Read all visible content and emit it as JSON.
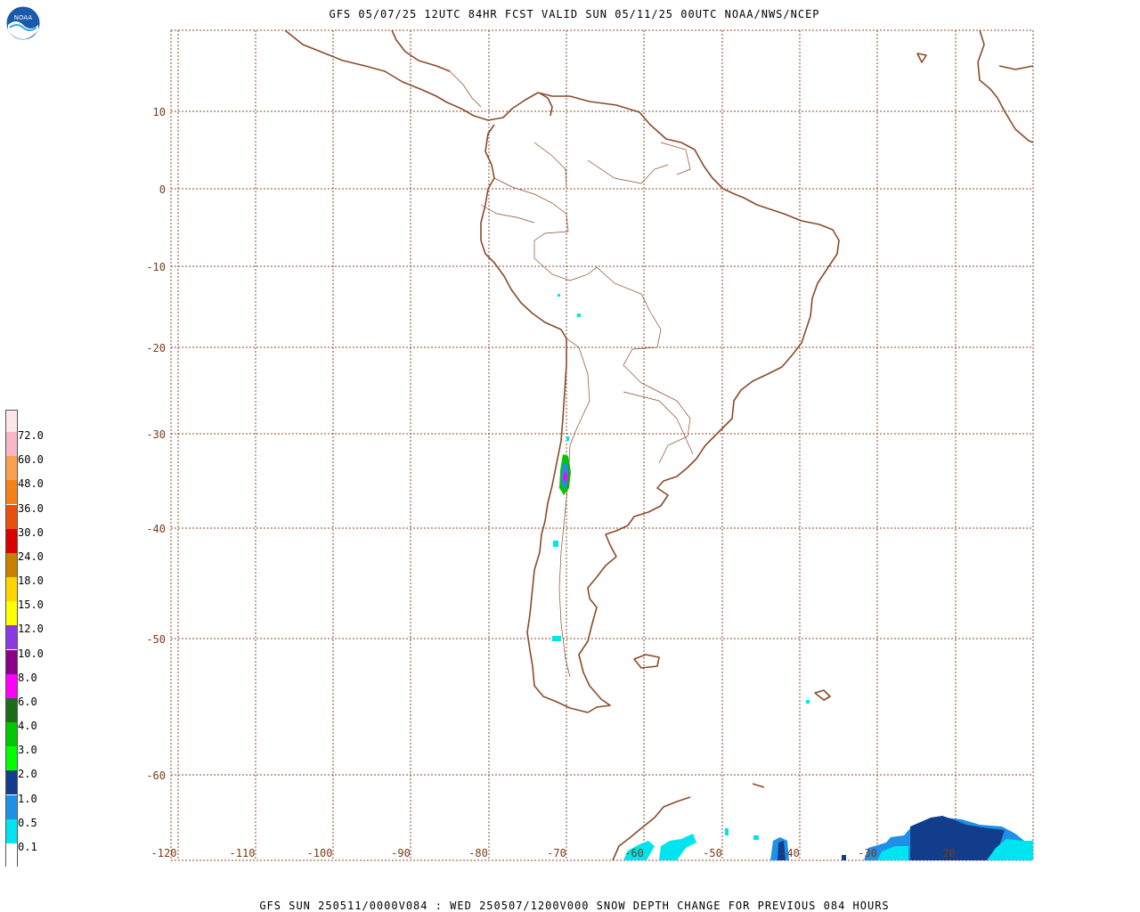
{
  "header": {
    "title": "GFS 05/07/25 12UTC 84HR FCST VALID SUN 05/11/25 00UTC NOAA/NWS/NCEP"
  },
  "footer": {
    "text": "GFS SUN 250511/0000V084 : WED 250507/1200V000 SNOW DEPTH CHANGE FOR PREVIOUS 084 HOURS"
  },
  "logo": {
    "icon": "noaa-logo-icon",
    "text": "NOAA"
  },
  "axes": {
    "lon_ticks": [
      "-120",
      "-110",
      "-100",
      "-90",
      "-80",
      "-70",
      "-60",
      "-50",
      "-40",
      "-30",
      "-20"
    ],
    "lat_ticks": [
      "10",
      "0",
      "-10",
      "-20",
      "-30",
      "-40",
      "-50",
      "-60"
    ]
  },
  "legend": {
    "colors": [
      "#fce6ea",
      "#f6b6c6",
      "#f7a050",
      "#f58216",
      "#e85010",
      "#d90000",
      "#c88000",
      "#ffd400",
      "#ffff00",
      "#8a3be0",
      "#8a008a",
      "#ff00ff",
      "#1a6e1a",
      "#00c800",
      "#00ff00",
      "#123c8c",
      "#1e90e8",
      "#00e4f0",
      "#ffffff"
    ],
    "labels": [
      "72.0",
      "60.0",
      "48.0",
      "36.0",
      "30.0",
      "24.0",
      "18.0",
      "15.0",
      "12.0",
      "10.0",
      "8.0",
      "6.0",
      "4.0",
      "3.0",
      "2.0",
      "1.0",
      "0.5",
      "0.1"
    ]
  },
  "colors": {
    "coastline": "#8b4a2a",
    "grid": "#8b4a2a",
    "snow_light": "#00e4f0",
    "snow_mid": "#1e90e8",
    "snow_heavy": "#123c8c"
  }
}
